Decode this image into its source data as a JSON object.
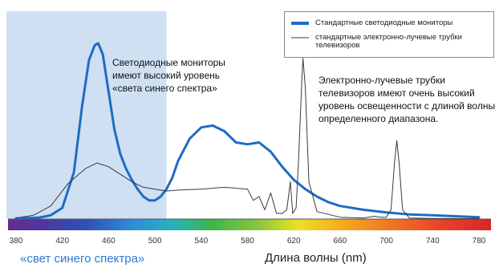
{
  "chart_data": {
    "type": "line",
    "title": "",
    "xlabel": "Длина волны (nm)",
    "ylabel": "",
    "xlim": [
      380,
      780
    ],
    "ylim": [
      0,
      100
    ],
    "x_ticks": [
      380,
      420,
      460,
      500,
      540,
      580,
      620,
      660,
      700,
      740,
      780
    ],
    "grid": false,
    "legend_position": "top-right",
    "colors": {
      "led": "#1e6cc4",
      "crt": "#3a3a3a",
      "blue_band": "#cfe0f3",
      "blue_label": "#2e7bd1"
    },
    "highlight_band": {
      "x_from": 380,
      "x_to": 510,
      "label": "«свет синего спектра»"
    },
    "series": [
      {
        "name": "Стандартные светодиодные мониторы",
        "color": "#1e6cc4",
        "points": [
          [
            380,
            0.3
          ],
          [
            400,
            0.8
          ],
          [
            410,
            2
          ],
          [
            420,
            6
          ],
          [
            430,
            25
          ],
          [
            437,
            60
          ],
          [
            443,
            85
          ],
          [
            448,
            93
          ],
          [
            451,
            94
          ],
          [
            455,
            88
          ],
          [
            460,
            68
          ],
          [
            465,
            48
          ],
          [
            470,
            35
          ],
          [
            475,
            27
          ],
          [
            480,
            21
          ],
          [
            485,
            16
          ],
          [
            490,
            12
          ],
          [
            495,
            10
          ],
          [
            500,
            10
          ],
          [
            505,
            12
          ],
          [
            510,
            16
          ],
          [
            515,
            22
          ],
          [
            520,
            31
          ],
          [
            530,
            43
          ],
          [
            540,
            49
          ],
          [
            550,
            50
          ],
          [
            560,
            47
          ],
          [
            570,
            41
          ],
          [
            580,
            40
          ],
          [
            590,
            41
          ],
          [
            600,
            36
          ],
          [
            610,
            28
          ],
          [
            620,
            21
          ],
          [
            630,
            16
          ],
          [
            640,
            12
          ],
          [
            650,
            9
          ],
          [
            660,
            7
          ],
          [
            680,
            5
          ],
          [
            700,
            3.5
          ],
          [
            720,
            2.5
          ],
          [
            740,
            2
          ],
          [
            760,
            1.5
          ],
          [
            780,
            1
          ]
        ]
      },
      {
        "name": "стандартные электронно-лучевые трубки телевизоров",
        "color": "#3a3a3a",
        "points": [
          [
            380,
            0.5
          ],
          [
            395,
            2
          ],
          [
            410,
            7
          ],
          [
            425,
            19
          ],
          [
            440,
            27
          ],
          [
            450,
            30
          ],
          [
            460,
            28
          ],
          [
            470,
            24
          ],
          [
            480,
            20
          ],
          [
            490,
            17
          ],
          [
            500,
            16
          ],
          [
            510,
            15
          ],
          [
            520,
            15.5
          ],
          [
            540,
            16
          ],
          [
            560,
            17
          ],
          [
            580,
            16
          ],
          [
            585,
            10
          ],
          [
            590,
            12
          ],
          [
            595,
            5
          ],
          [
            600,
            14
          ],
          [
            605,
            3
          ],
          [
            610,
            3
          ],
          [
            614,
            5
          ],
          [
            617,
            20
          ],
          [
            619,
            3
          ],
          [
            622,
            6
          ],
          [
            624,
            30
          ],
          [
            627,
            75
          ],
          [
            628,
            86
          ],
          [
            630,
            70
          ],
          [
            633,
            20
          ],
          [
            640,
            4
          ],
          [
            660,
            1
          ],
          [
            680,
            0.5
          ],
          [
            690,
            1.5
          ],
          [
            695,
            1
          ],
          [
            700,
            1
          ],
          [
            704,
            5
          ],
          [
            707,
            30
          ],
          [
            709,
            42
          ],
          [
            711,
            30
          ],
          [
            714,
            5
          ],
          [
            720,
            0.5
          ],
          [
            740,
            0.3
          ],
          [
            780,
            0.2
          ]
        ]
      }
    ],
    "annotations": [
      "Светодиодные мониторы имеют высокий уровень «света синего спектра»",
      "Электронно-лучевые трубки телевизоров имеют очень высокий уровень освещенности с длиной волны определенного диапазона."
    ]
  }
}
